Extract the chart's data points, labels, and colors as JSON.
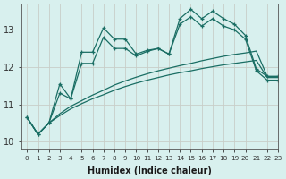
{
  "xlabel": "Humidex (Indice chaleur)",
  "xlim": [
    -0.5,
    23
  ],
  "ylim": [
    9.8,
    13.7
  ],
  "yticks": [
    10,
    11,
    12,
    13
  ],
  "xticks": [
    0,
    1,
    2,
    3,
    4,
    5,
    6,
    7,
    8,
    9,
    10,
    11,
    12,
    13,
    14,
    15,
    16,
    17,
    18,
    19,
    20,
    21,
    22,
    23
  ],
  "bg_color": "#d8f0ee",
  "line_color": "#1a6e64",
  "grid_color": "#c8cec8",
  "lines": [
    {
      "has_markers": true,
      "x": [
        0,
        1,
        2,
        3,
        4,
        5,
        6,
        7,
        8,
        9,
        10,
        11,
        12,
        13,
        14,
        15,
        16,
        17,
        18,
        19,
        20,
        21,
        22,
        23
      ],
      "y": [
        10.65,
        10.2,
        10.5,
        11.55,
        11.15,
        12.4,
        12.4,
        13.05,
        12.75,
        12.75,
        12.35,
        12.45,
        12.5,
        12.35,
        13.3,
        13.55,
        13.3,
        13.5,
        13.3,
        13.15,
        12.85,
        11.95,
        11.75,
        11.75
      ]
    },
    {
      "has_markers": true,
      "x": [
        0,
        1,
        2,
        3,
        4,
        5,
        6,
        7,
        8,
        9,
        10,
        11,
        12,
        13,
        14,
        15,
        16,
        17,
        18,
        19,
        20,
        21,
        22,
        23
      ],
      "y": [
        10.65,
        10.2,
        10.5,
        11.3,
        11.15,
        12.1,
        12.1,
        12.8,
        12.5,
        12.5,
        12.3,
        12.42,
        12.5,
        12.35,
        13.15,
        13.35,
        13.1,
        13.3,
        13.1,
        13.0,
        12.75,
        11.9,
        11.65,
        11.65
      ]
    },
    {
      "has_markers": false,
      "x": [
        0,
        1,
        2,
        3,
        4,
        5,
        6,
        7,
        8,
        9,
        10,
        11,
        12,
        13,
        14,
        15,
        16,
        17,
        18,
        19,
        20,
        21,
        22,
        23
      ],
      "y": [
        10.65,
        10.2,
        10.5,
        10.75,
        10.95,
        11.1,
        11.25,
        11.38,
        11.52,
        11.63,
        11.73,
        11.82,
        11.9,
        11.97,
        12.04,
        12.1,
        12.17,
        12.23,
        12.29,
        12.34,
        12.38,
        12.43,
        11.75,
        11.75
      ]
    },
    {
      "has_markers": false,
      "x": [
        0,
        1,
        2,
        3,
        4,
        5,
        6,
        7,
        8,
        9,
        10,
        11,
        12,
        13,
        14,
        15,
        16,
        17,
        18,
        19,
        20,
        21,
        22,
        23
      ],
      "y": [
        10.65,
        10.2,
        10.5,
        10.7,
        10.88,
        11.02,
        11.15,
        11.26,
        11.38,
        11.48,
        11.57,
        11.65,
        11.72,
        11.79,
        11.85,
        11.9,
        11.96,
        12.01,
        12.06,
        12.1,
        12.14,
        12.18,
        11.72,
        11.72
      ]
    }
  ]
}
